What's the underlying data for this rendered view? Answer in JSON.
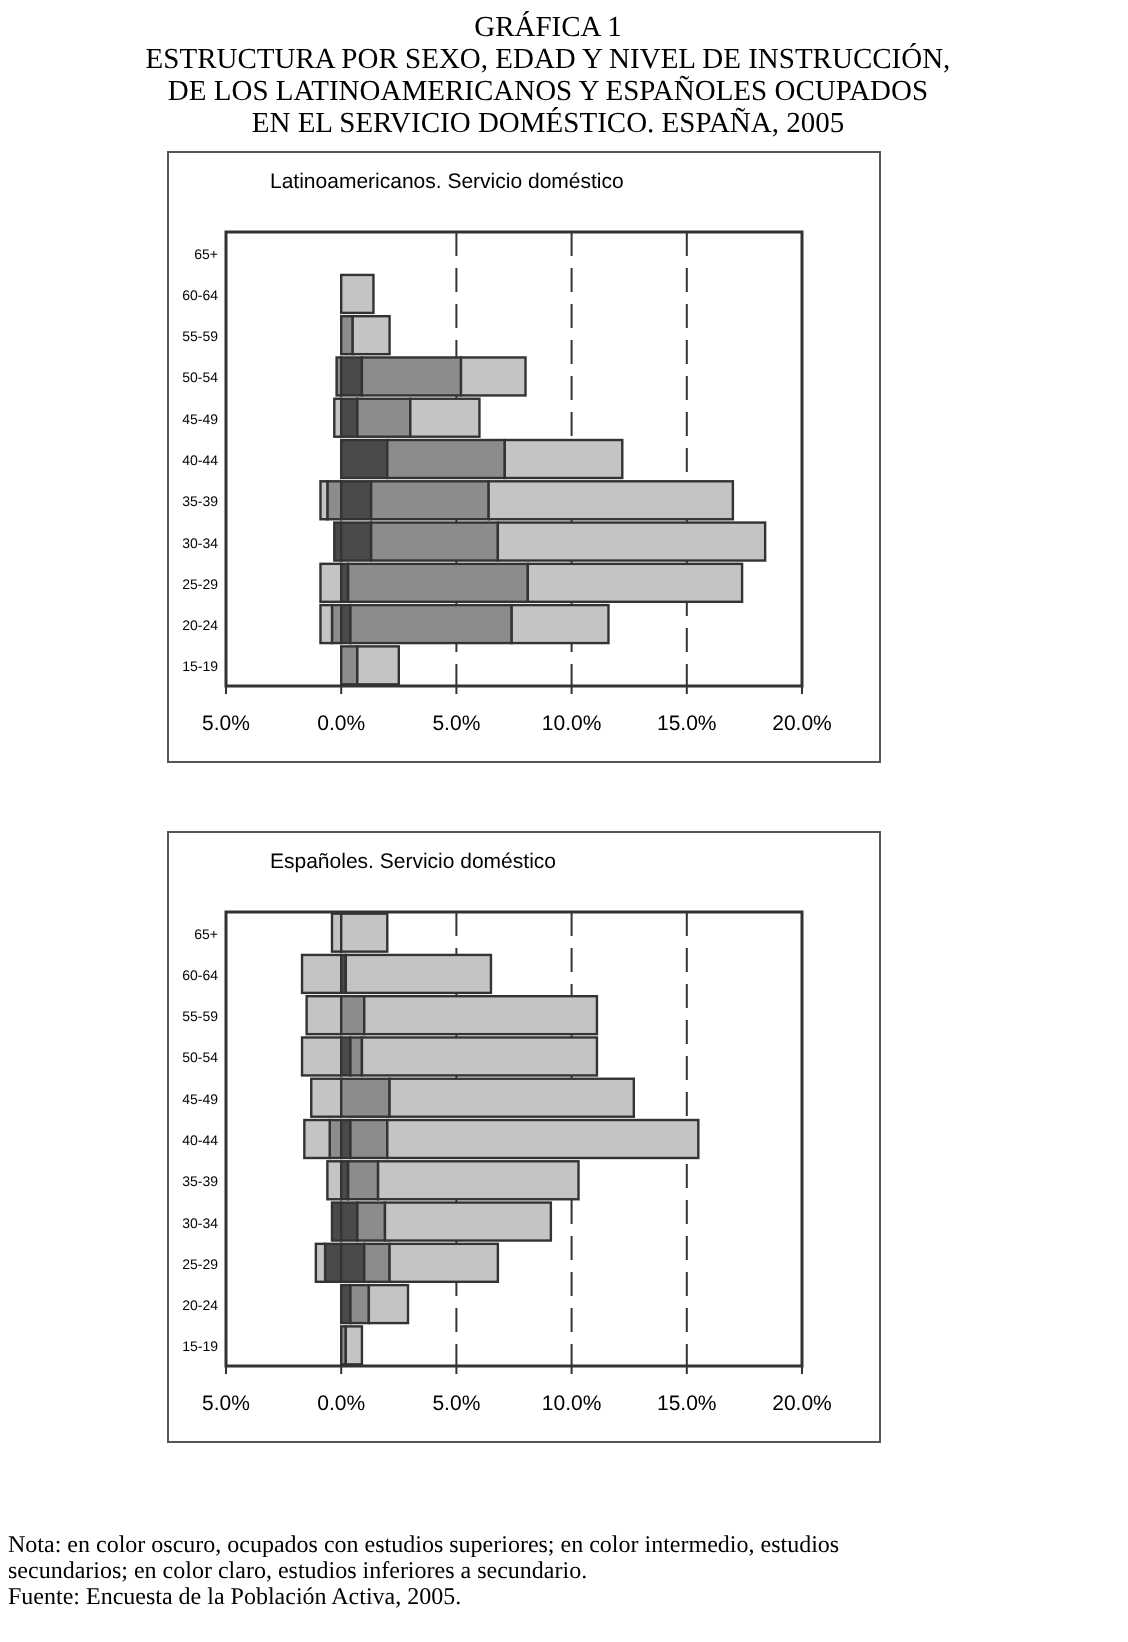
{
  "chart_data": [
    {
      "type": "bar",
      "title": "GRÁFICA 1\nESTRUCTURA POR SEXO, EDAD Y NIVEL  DE INSTRUCCIÓN,\nDE LOS LATINOAMERICANOS Y ESPAÑOLES OCUPADOS\nEN EL SERVICIO DOMÉSTICO. ESPAÑA, 2005",
      "subtitle": "Latinoamericanos. Servicio doméstico",
      "orientation": "horizontal",
      "stacked": true,
      "grid": "x",
      "categories": [
        "65+",
        "60-64",
        "55-59",
        "50-54",
        "45-49",
        "40-44",
        "35-39",
        "30-34",
        "25-29",
        "20-24",
        "15-19"
      ],
      "xlim": [
        -5,
        20
      ],
      "xticks": [
        {
          "value": -5,
          "label": "5.0%"
        },
        {
          "value": 0,
          "label": "0.0%"
        },
        {
          "value": 5,
          "label": "5.0%"
        },
        {
          "value": 10,
          "label": "10.0%"
        },
        {
          "value": 15,
          "label": "15.0%"
        },
        {
          "value": 20,
          "label": "20.0%"
        }
      ],
      "series": [
        {
          "color": "#4a4a4a",
          "values": [
            0,
            0,
            0,
            0,
            null,
            0,
            0,
            -0.3,
            0,
            0,
            0
          ]
        },
        {
          "color": "#8c8c8c",
          "values": [
            0,
            0,
            0,
            -0.2,
            0,
            0,
            -0.6,
            0,
            0,
            -0.4,
            0
          ]
        },
        {
          "color": "#c4c4c4",
          "values": [
            0,
            0,
            0,
            0,
            -0.3,
            0,
            -0.3,
            0,
            -0.9,
            -0.5,
            0
          ]
        },
        {
          "color": "#4a4a4a",
          "values": [
            0,
            0,
            0,
            0.9,
            0.7,
            2.0,
            1.3,
            1.3,
            0.3,
            0.4,
            0
          ]
        },
        {
          "color": "#8c8c8c",
          "values": [
            0,
            0,
            0.5,
            4.3,
            2.3,
            5.1,
            5.1,
            5.5,
            7.8,
            7.0,
            0.7
          ]
        },
        {
          "color": "#c4c4c4",
          "values": [
            0,
            1.4,
            1.6,
            2.8,
            3.0,
            5.1,
            10.6,
            11.6,
            9.3,
            4.2,
            1.8
          ]
        }
      ]
    },
    {
      "type": "bar",
      "subtitle": "Españoles. Servicio doméstico",
      "orientation": "horizontal",
      "stacked": true,
      "grid": "x",
      "categories": [
        "65+",
        "60-64",
        "55-59",
        "50-54",
        "45-49",
        "40-44",
        "35-39",
        "30-34",
        "25-29",
        "20-24",
        "15-19"
      ],
      "xlim": [
        -5,
        20
      ],
      "xticks": [
        {
          "value": -5,
          "label": "5.0%"
        },
        {
          "value": 0,
          "label": "0.0%"
        },
        {
          "value": 5,
          "label": "5.0%"
        },
        {
          "value": 10,
          "label": "10.0%"
        },
        {
          "value": 15,
          "label": "15.0%"
        },
        {
          "value": 20,
          "label": "20.0%"
        }
      ],
      "series": [
        {
          "color": "#4a4a4a",
          "values": [
            0,
            null,
            0,
            0,
            0,
            0,
            null,
            -0.4,
            -0.7,
            0,
            0
          ]
        },
        {
          "color": "#8c8c8c",
          "values": [
            0,
            0,
            0,
            0,
            0,
            -0.5,
            0,
            0,
            null,
            0,
            0
          ]
        },
        {
          "color": "#c4c4c4",
          "values": [
            -0.4,
            -1.7,
            -1.5,
            -1.7,
            -1.3,
            -1.1,
            -0.6,
            0,
            -0.4,
            0,
            0
          ]
        },
        {
          "color": "#4a4a4a",
          "values": [
            0,
            0.2,
            0,
            0.4,
            0,
            0.4,
            0.3,
            0.7,
            1.0,
            0.4,
            0
          ]
        },
        {
          "color": "#8c8c8c",
          "values": [
            0,
            0,
            1.0,
            0.5,
            2.1,
            1.6,
            1.3,
            1.2,
            1.1,
            0.8,
            0.2
          ]
        },
        {
          "color": "#c4c4c4",
          "values": [
            2.0,
            6.3,
            10.1,
            10.2,
            10.6,
            13.5,
            8.7,
            7.2,
            4.7,
            1.7,
            0.7
          ]
        }
      ],
      "annotations": [
        "Nota: en color oscuro, ocupados con estudios superiores; en color intermedio, estudios secundarios; en color claro, estudios inferiores a secundario.",
        "Fuente: Encuesta de la Población Activa, 2005."
      ]
    }
  ]
}
